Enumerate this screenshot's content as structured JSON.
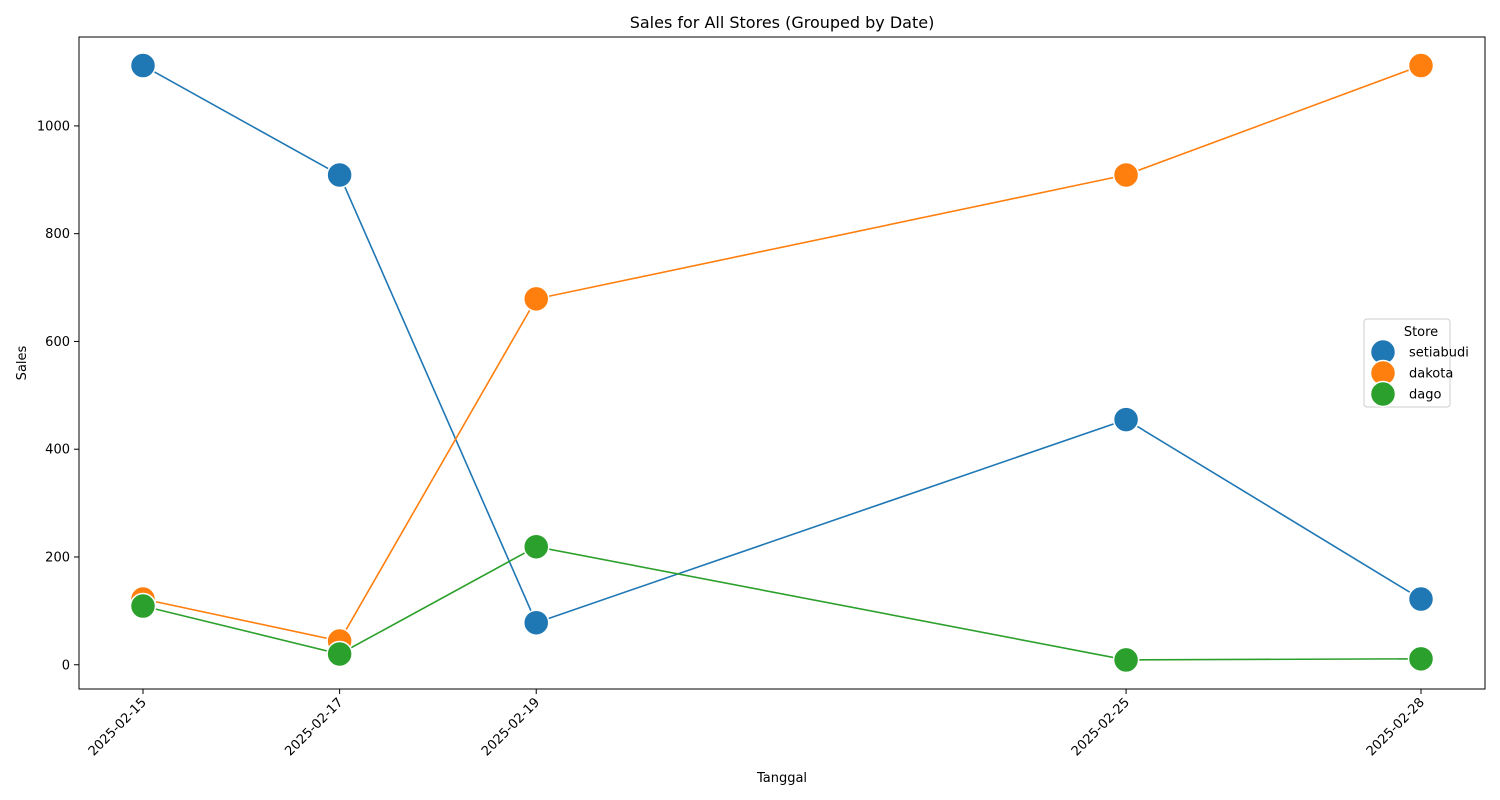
{
  "chart_data": {
    "type": "line",
    "title": "Sales for All Stores (Grouped by Date)",
    "xlabel": "Tanggal",
    "ylabel": "Sales",
    "x": [
      "2025-02-15",
      "2025-02-17",
      "2025-02-19",
      "2025-02-25",
      "2025-02-28"
    ],
    "ylim": [
      -45,
      1165
    ],
    "yticks": [
      0,
      200,
      400,
      600,
      800,
      1000
    ],
    "grid": false,
    "legend": {
      "title": "Store",
      "placement": "center-right"
    },
    "series": [
      {
        "name": "setiabudi",
        "color": "#1f77b4",
        "values": [
          1112,
          909,
          78,
          455,
          122
        ]
      },
      {
        "name": "dakota",
        "color": "#ff7f0e",
        "values": [
          122,
          44,
          679,
          909,
          1112
        ]
      },
      {
        "name": "dago",
        "color": "#2ca02c",
        "values": [
          109,
          20,
          219,
          9,
          11
        ]
      }
    ]
  }
}
